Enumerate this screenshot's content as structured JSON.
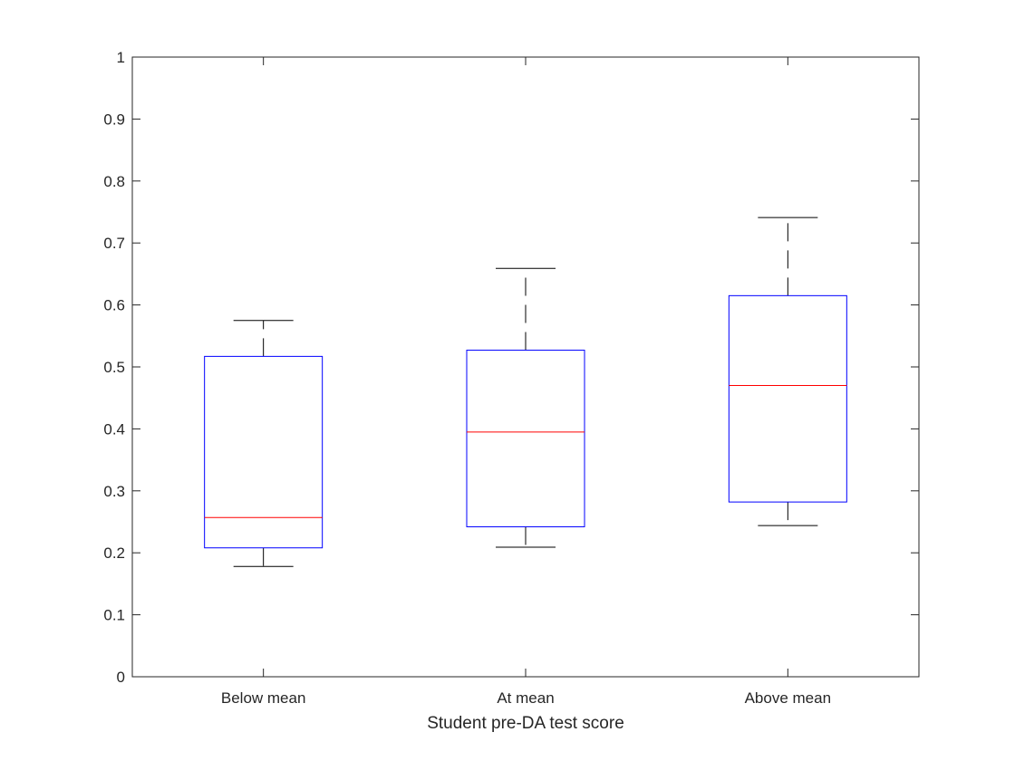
{
  "chart_data": {
    "type": "box",
    "title": "",
    "xlabel": "Student pre-DA test score",
    "ylabel": "",
    "ylim": [
      0,
      1
    ],
    "yticks": [
      0,
      0.1,
      0.2,
      0.3,
      0.4,
      0.5,
      0.6,
      0.7,
      0.8,
      0.9,
      1
    ],
    "ytick_labels": [
      "0",
      "0.1",
      "0.2",
      "0.3",
      "0.4",
      "0.5",
      "0.6",
      "0.7",
      "0.8",
      "0.9",
      "1"
    ],
    "categories": [
      "Below mean",
      "At mean",
      "Above mean"
    ],
    "boxes": [
      {
        "whisker_low": 0.178,
        "q1": 0.208,
        "median": 0.257,
        "q3": 0.517,
        "whisker_high": 0.575
      },
      {
        "whisker_low": 0.209,
        "q1": 0.242,
        "median": 0.395,
        "q3": 0.527,
        "whisker_high": 0.659
      },
      {
        "whisker_low": 0.244,
        "q1": 0.282,
        "median": 0.47,
        "q3": 0.615,
        "whisker_high": 0.741
      }
    ],
    "grid": false,
    "colors": {
      "box": "#0000ff",
      "median": "#ff0000",
      "whisker": "#000000",
      "axis": "#262626"
    }
  }
}
